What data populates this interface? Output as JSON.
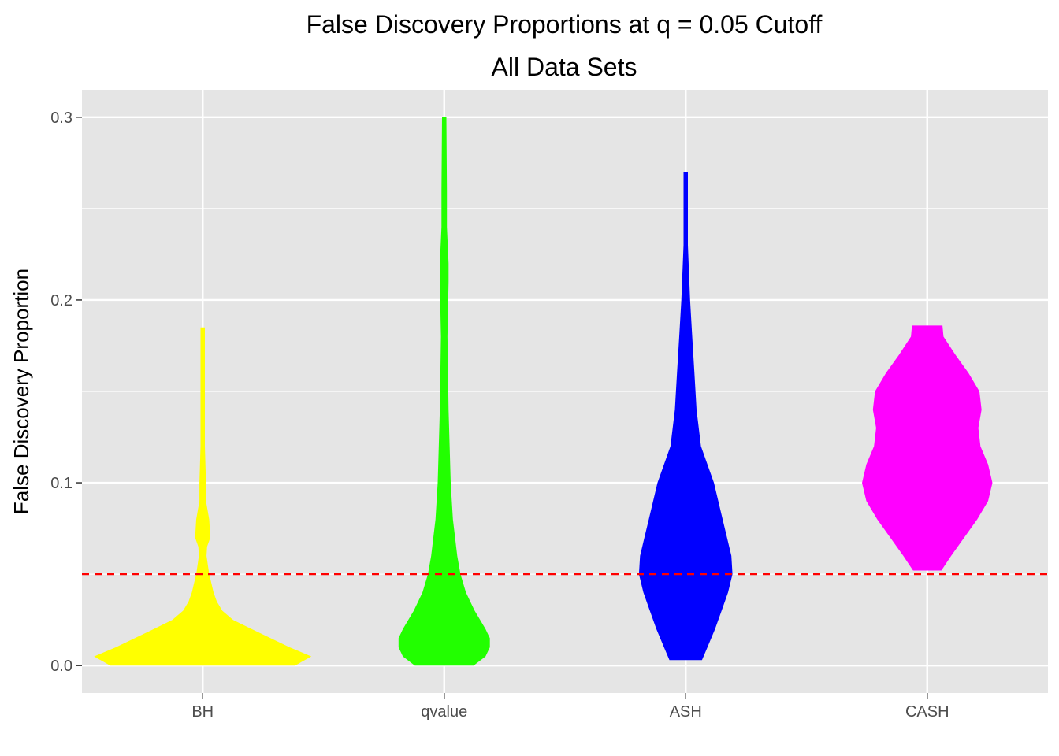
{
  "chart_data": {
    "type": "violin",
    "title": "False Discovery Proportions at q = 0.05 Cutoff",
    "subtitle": "All Data Sets",
    "xlabel": "",
    "ylabel": "False Discovery Proportion",
    "ylim": [
      -0.015,
      0.315
    ],
    "yticks": [
      "0.0",
      "0.1",
      "0.2",
      "0.3"
    ],
    "ytick_values": [
      0.0,
      0.1,
      0.2,
      0.3
    ],
    "grid": true,
    "background": "#e5e5e5",
    "reference_line": {
      "y": 0.05,
      "color": "#ff0000",
      "style": "dashed"
    },
    "categories": [
      "BH",
      "qvalue",
      "ASH",
      "CASH"
    ],
    "series": [
      {
        "category": "BH",
        "color": "#ffff00",
        "y": [
          0.0,
          0.005,
          0.01,
          0.02,
          0.025,
          0.03,
          0.035,
          0.04,
          0.045,
          0.05,
          0.06,
          0.065,
          0.07,
          0.08,
          0.09,
          0.1,
          0.12,
          0.15,
          0.185
        ],
        "width": [
          0.85,
          1.0,
          0.8,
          0.45,
          0.28,
          0.18,
          0.13,
          0.1,
          0.08,
          0.06,
          0.035,
          0.04,
          0.07,
          0.06,
          0.03,
          0.03,
          0.02,
          0.02,
          0.02
        ]
      },
      {
        "category": "qvalue",
        "color": "#22ff00",
        "y": [
          0.0,
          0.005,
          0.01,
          0.015,
          0.02,
          0.03,
          0.04,
          0.05,
          0.06,
          0.08,
          0.1,
          0.14,
          0.18,
          0.21,
          0.22,
          0.24,
          0.26,
          0.3
        ],
        "width": [
          0.27,
          0.38,
          0.42,
          0.42,
          0.38,
          0.28,
          0.2,
          0.15,
          0.12,
          0.08,
          0.06,
          0.04,
          0.03,
          0.04,
          0.04,
          0.025,
          0.025,
          0.02
        ]
      },
      {
        "category": "ASH",
        "color": "#0000ff",
        "y": [
          0.003,
          0.01,
          0.02,
          0.03,
          0.04,
          0.05,
          0.06,
          0.07,
          0.08,
          0.09,
          0.1,
          0.11,
          0.12,
          0.14,
          0.16,
          0.18,
          0.2,
          0.23,
          0.27
        ],
        "width": [
          0.15,
          0.2,
          0.27,
          0.33,
          0.39,
          0.43,
          0.42,
          0.38,
          0.34,
          0.3,
          0.26,
          0.2,
          0.14,
          0.1,
          0.08,
          0.06,
          0.04,
          0.02,
          0.02
        ]
      },
      {
        "category": "CASH",
        "color": "#ff00ff",
        "y": [
          0.052,
          0.06,
          0.07,
          0.08,
          0.09,
          0.1,
          0.11,
          0.12,
          0.13,
          0.14,
          0.15,
          0.16,
          0.17,
          0.18,
          0.186
        ],
        "width": [
          0.13,
          0.22,
          0.34,
          0.46,
          0.56,
          0.6,
          0.56,
          0.49,
          0.47,
          0.5,
          0.48,
          0.38,
          0.26,
          0.15,
          0.14
        ]
      }
    ]
  }
}
